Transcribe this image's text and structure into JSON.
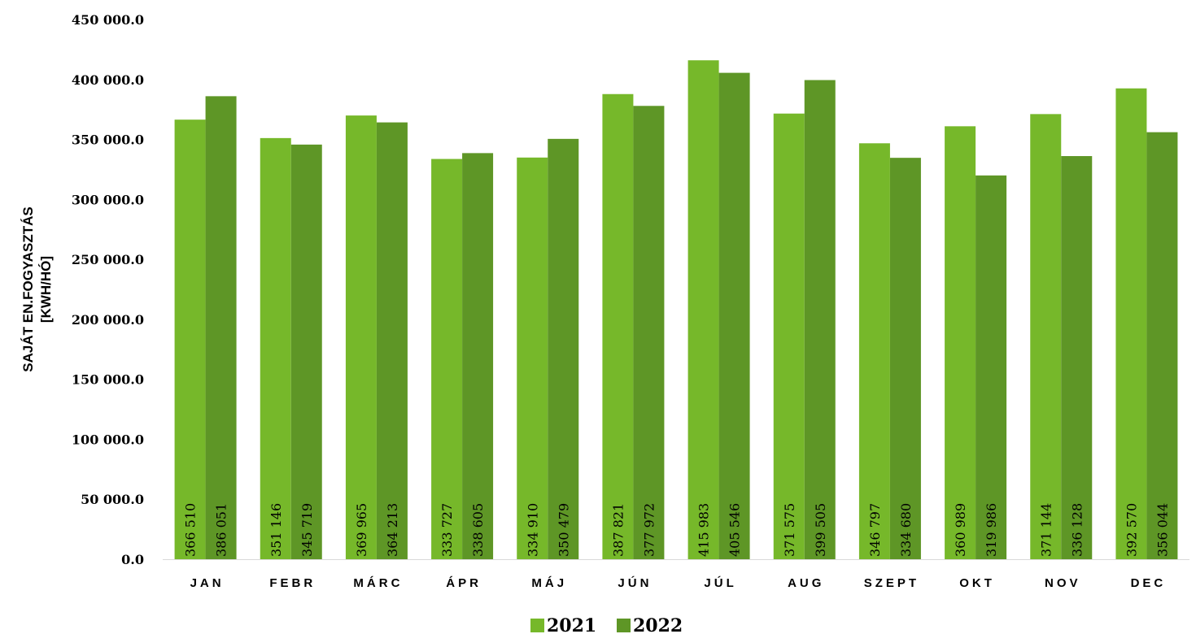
{
  "chart_data": {
    "type": "bar",
    "title": "",
    "ylabel_lines": [
      "SAJÁT EN.FOGYASZTÁS",
      "[KWH/HÓ]"
    ],
    "xlabel": "",
    "ylim": [
      0,
      450000
    ],
    "y_ticks": [
      "0.0",
      "50 000.0",
      "100 000.0",
      "150 000.0",
      "200 000.0",
      "250 000.0",
      "300 000.0",
      "350 000.0",
      "400 000.0",
      "450 000.0"
    ],
    "categories": [
      "JAN",
      "FEBR",
      "MÁRC",
      "ÁPR",
      "MÁJ",
      "JÚN",
      "JÚL",
      "AUG",
      "SZEPT",
      "OKT",
      "NOV",
      "DEC"
    ],
    "series": [
      {
        "name": "2021",
        "color": "#76B82A",
        "values": [
          366510,
          351146,
          369965,
          333727,
          334910,
          387821,
          415983,
          371575,
          346797,
          360989,
          371144,
          392570
        ],
        "labels": [
          "366 510",
          "351 146",
          "369 965",
          "333 727",
          "334 910",
          "387 821",
          "415 983",
          "371 575",
          "346 797",
          "360 989",
          "371 144",
          "392 570"
        ]
      },
      {
        "name": "2022",
        "color": "#5E9626",
        "values": [
          386051,
          345719,
          364213,
          338605,
          350479,
          377972,
          405546,
          399505,
          334680,
          319986,
          336128,
          356044
        ],
        "labels": [
          "386 051",
          "345 719",
          "364 213",
          "338 605",
          "350 479",
          "377 972",
          "405 546",
          "399 505",
          "334 680",
          "319 986",
          "336 128",
          "356 044"
        ]
      }
    ],
    "grid": false,
    "legend": "bottom-center"
  }
}
